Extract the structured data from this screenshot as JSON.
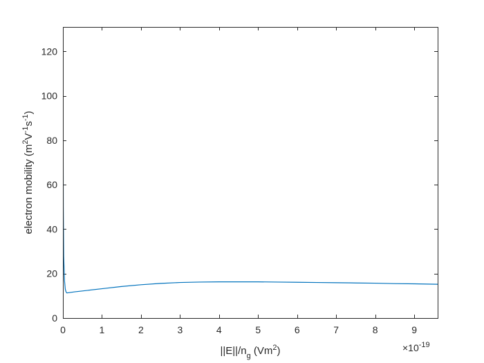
{
  "chart_data": {
    "type": "line",
    "title": "",
    "xlabel": "||E||/n_g (Vm^2)",
    "xlabel_parts": {
      "main": "||E||/n",
      "sub": "g",
      "paren_open": " (Vm",
      "sup": "2",
      "paren_close": ")"
    },
    "ylabel": "electron mobility (m^2V^-1s^-1)",
    "ylabel_parts": {
      "main": "electron mobility (m",
      "sup1": "2",
      "mid1": "V",
      "sup2": "-1",
      "mid2": "s",
      "sup3": "-1",
      "end": ")"
    },
    "x_exponent_label": "×10",
    "x_exponent_power": "-19",
    "xlim": [
      0,
      9.6
    ],
    "ylim": [
      0,
      131
    ],
    "xticks": [
      0,
      1,
      2,
      3,
      4,
      5,
      6,
      7,
      8,
      9
    ],
    "xtick_labels": [
      "0",
      "1",
      "2",
      "3",
      "4",
      "5",
      "6",
      "7",
      "8",
      "9"
    ],
    "yticks": [
      0,
      20,
      40,
      60,
      80,
      100,
      120
    ],
    "ytick_labels": [
      "0",
      "20",
      "40",
      "60",
      "80",
      "100",
      "120"
    ],
    "grid": false,
    "legend": "none",
    "series": [
      {
        "color": "#0072BD",
        "x": [
          0.001,
          0.005,
          0.01,
          0.02,
          0.04,
          0.06,
          0.08,
          0.1,
          0.3,
          0.5,
          1.0,
          1.5,
          2.0,
          2.5,
          3.0,
          3.5,
          4.0,
          4.5,
          5.0,
          5.5,
          6.0,
          6.5,
          7.0,
          7.5,
          8.0,
          8.5,
          9.0,
          9.6
        ],
        "y": [
          131,
          90,
          50,
          28,
          17,
          13,
          11.8,
          11.3,
          11.8,
          12.2,
          13.2,
          14.2,
          15.0,
          15.6,
          16.0,
          16.2,
          16.3,
          16.3,
          16.3,
          16.2,
          16.1,
          16.0,
          15.9,
          15.8,
          15.7,
          15.5,
          15.4,
          15.2
        ]
      }
    ]
  }
}
